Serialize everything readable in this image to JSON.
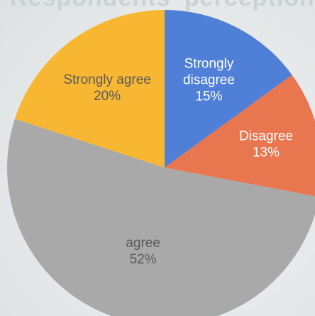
{
  "background_text": "Respondents' perception",
  "chart_data": {
    "type": "pie",
    "title": "",
    "start_angle_deg": 0,
    "direction": "clockwise",
    "slices": [
      {
        "name": "Strongly disagree",
        "label_lines": [
          "Strongly",
          "disagree"
        ],
        "value": 15,
        "value_label": "15%",
        "color": "#4f7fd6",
        "label_color": "#ffffff"
      },
      {
        "name": "Disagree",
        "label_lines": [
          "Disagree"
        ],
        "value": 13,
        "value_label": "13%",
        "color": "#e8764f",
        "label_color": "#ffffff"
      },
      {
        "name": "agree",
        "label_lines": [
          "agree"
        ],
        "value": 52,
        "value_label": "52%",
        "color": "#a9a9a9",
        "label_color": "#5a5a5a"
      },
      {
        "name": "Strongly agree",
        "label_lines": [
          "Strongly agree"
        ],
        "value": 20,
        "value_label": "20%",
        "color": "#f7b733",
        "label_color": "#5a5a5a"
      }
    ]
  }
}
